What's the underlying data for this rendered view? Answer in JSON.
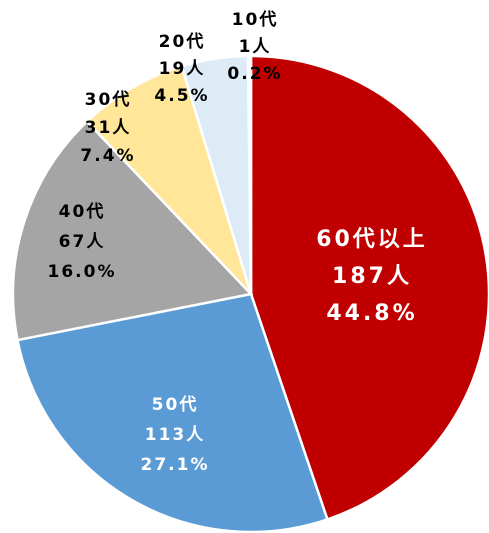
{
  "chart_data": {
    "type": "pie",
    "categories": [
      "60代以上",
      "50代",
      "40代",
      "30代",
      "20代",
      "10代"
    ],
    "count_labels": [
      "187人",
      "113人",
      "67人",
      "31人",
      "19人",
      "1人"
    ],
    "values": [
      44.8,
      27.1,
      16.0,
      7.4,
      4.5,
      0.2
    ],
    "value_labels": [
      "44.8%",
      "27.1%",
      "16.0%",
      "7.4%",
      "4.5%",
      "0.2%"
    ],
    "colors": [
      "#c00000",
      "#5b9bd5",
      "#a5a5a5",
      "#ffe699",
      "#ddebf7",
      "#ddebf7"
    ],
    "label_colors": [
      "#ffffff",
      "#ffffff",
      "#000000",
      "#000000",
      "#000000",
      "#000000"
    ]
  }
}
